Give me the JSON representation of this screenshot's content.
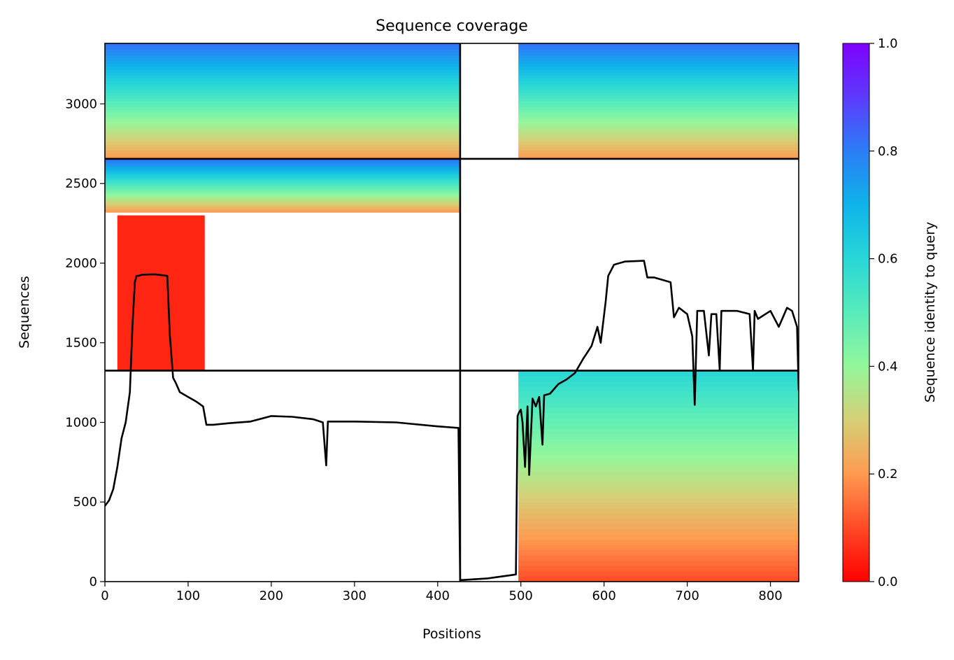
{
  "chart_data": {
    "type": "heatmap",
    "title": "Sequence coverage",
    "xlabel": "Positions",
    "ylabel": "Sequences",
    "xlim": [
      0,
      834
    ],
    "ylim": [
      0,
      3380
    ],
    "xticks": [
      0,
      100,
      200,
      300,
      400,
      500,
      600,
      700,
      800
    ],
    "yticks": [
      0,
      500,
      1000,
      1500,
      2000,
      2500,
      3000
    ],
    "colorbar": {
      "label": "Sequence identity to query",
      "range": [
        0.0,
        1.0
      ],
      "ticks": [
        "0.0",
        "0.2",
        "0.4",
        "0.6",
        "0.8",
        "1.0"
      ],
      "colormap": "rainbow_r"
    },
    "chain_boundaries": {
      "positions": [
        427
      ],
      "sequences": [
        1325,
        2655
      ]
    },
    "blocks": [
      {
        "name": "top-left",
        "x0": 0,
        "x1": 427,
        "y0": 2655,
        "y1": 3380,
        "identity_top": 0.82,
        "identity_bottom": 0.2
      },
      {
        "name": "top-right",
        "x0": 497,
        "x1": 834,
        "y0": 2655,
        "y1": 3380,
        "identity_top": 0.82,
        "identity_bottom": 0.2
      },
      {
        "name": "middle-left",
        "x0": 0,
        "x1": 427,
        "y0": 2320,
        "y1": 2655,
        "identity_top": 0.82,
        "identity_bottom": 0.2
      },
      {
        "name": "middle-left-red",
        "x0": 15,
        "x1": 120,
        "y0": 1325,
        "y1": 2300,
        "identity_top": 0.05,
        "identity_bottom": 0.05
      },
      {
        "name": "bottom-right",
        "x0": 497,
        "x1": 834,
        "y0": 0,
        "y1": 1325,
        "identity_top": 0.6,
        "identity_bottom": 0.1
      }
    ],
    "coverage_line": {
      "x": [
        0,
        5,
        10,
        15,
        20,
        25,
        30,
        33,
        36,
        38,
        40,
        45,
        60,
        75,
        78,
        82,
        85,
        90,
        100,
        110,
        118,
        122,
        130,
        150,
        175,
        200,
        225,
        250,
        262,
        266,
        268,
        275,
        300,
        350,
        400,
        425,
        427,
        430,
        460,
        494,
        496,
        498,
        500,
        502,
        505,
        508,
        510,
        514,
        518,
        522,
        526,
        528,
        535,
        545,
        555,
        565,
        575,
        585,
        592,
        596,
        602,
        605,
        612,
        625,
        648,
        652,
        660,
        680,
        684,
        690,
        700,
        706,
        709,
        712,
        720,
        726,
        729,
        735,
        739,
        741,
        745,
        750,
        760,
        775,
        779,
        781,
        785,
        800,
        810,
        820,
        826,
        832,
        834
      ],
      "y": [
        475,
        510,
        580,
        720,
        900,
        1000,
        1190,
        1600,
        1880,
        1920,
        1920,
        1928,
        1930,
        1920,
        1550,
        1280,
        1250,
        1190,
        1160,
        1130,
        1100,
        985,
        985,
        995,
        1005,
        1040,
        1035,
        1020,
        1000,
        730,
        1005,
        1005,
        1005,
        1000,
        975,
        965,
        10,
        10,
        20,
        45,
        1040,
        1065,
        1080,
        1000,
        720,
        1100,
        670,
        1150,
        1100,
        1160,
        860,
        1170,
        1180,
        1240,
        1270,
        1310,
        1400,
        1480,
        1600,
        1500,
        1760,
        1920,
        1990,
        2010,
        2015,
        1910,
        1910,
        1880,
        1660,
        1720,
        1680,
        1540,
        1110,
        1700,
        1700,
        1420,
        1680,
        1680,
        1330,
        1700,
        1700,
        1700,
        1700,
        1680,
        1330,
        1700,
        1650,
        1700,
        1600,
        1720,
        1700,
        1600,
        1200
      ]
    }
  }
}
